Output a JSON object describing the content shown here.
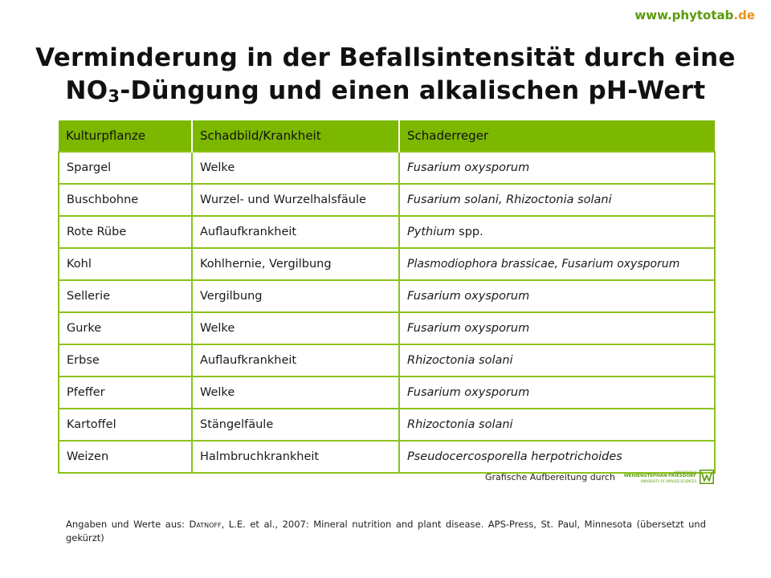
{
  "site": {
    "url_main": "www.phytotab",
    "url_tld": ".de"
  },
  "title": {
    "line1": "Verminderung in der Befallsintensität durch eine",
    "line2_prefix": "NO",
    "line2_sub": "3",
    "line2_rest": "-Düngung und einen alkalischen pH-Wert"
  },
  "table": {
    "headers": [
      "Kulturpflanze",
      "Schadbild/Krankheit",
      "Schaderreger"
    ],
    "rows": [
      {
        "crop": "Spargel",
        "symptom": "Welke",
        "pathogen": "Fusarium oxysporum",
        "pathogen_suffix": ""
      },
      {
        "crop": "Buschbohne",
        "symptom": "Wurzel- und Wurzelhalsfäule",
        "pathogen": "Fusarium solani, Rhizoctonia solani",
        "pathogen_suffix": ""
      },
      {
        "crop": "Rote Rübe",
        "symptom": "Auflaufkrankheit",
        "pathogen": "Pythium",
        "pathogen_suffix": " spp."
      },
      {
        "crop": "Kohl",
        "symptom": "Kohlhernie, Vergilbung",
        "pathogen": "Plasmodiophora brassicae, Fusarium oxysporum",
        "pathogen_suffix": ""
      },
      {
        "crop": "Sellerie",
        "symptom": "Vergilbung",
        "pathogen": "Fusarium oxysporum",
        "pathogen_suffix": ""
      },
      {
        "crop": "Gurke",
        "symptom": "Welke",
        "pathogen": "Fusarium oxysporum",
        "pathogen_suffix": ""
      },
      {
        "crop": "Erbse",
        "symptom": "Auflaufkrankheit",
        "pathogen": "Rhizoctonia solani",
        "pathogen_suffix": ""
      },
      {
        "crop": "Pfeffer",
        "symptom": "Welke",
        "pathogen": "Fusarium oxysporum",
        "pathogen_suffix": ""
      },
      {
        "crop": "Kartoffel",
        "symptom": "Stängelfäule",
        "pathogen": "Rhizoctonia solani",
        "pathogen_suffix": ""
      },
      {
        "crop": "Weizen",
        "symptom": "Halmbruchkrankheit",
        "pathogen": "Pseudocercosporella herpotrichoides",
        "pathogen_suffix": ""
      }
    ]
  },
  "credit": {
    "text": "Grafische Aufbereitung durch",
    "logo_line1": "HOCHSCHULE",
    "logo_line2": "WEIHENSTEPHAN-TRIESDORF",
    "logo_line3": "UNIVERSITY OF APPLIED SCIENCES",
    "logo_icon": "hswt-logo-icon"
  },
  "source": {
    "prefix": "Angaben und Werte aus: ",
    "author": "Datnoff",
    "rest": ", L.E. et al., 2007: Mineral nutrition and plant disease. APS-Press, St. Paul, Minnesota (übersetzt und gekürzt)"
  },
  "colors": {
    "header_bg": "#7cb800",
    "border": "#8cc21c",
    "url_green": "#5a9a0a",
    "url_orange": "#e8921a"
  }
}
